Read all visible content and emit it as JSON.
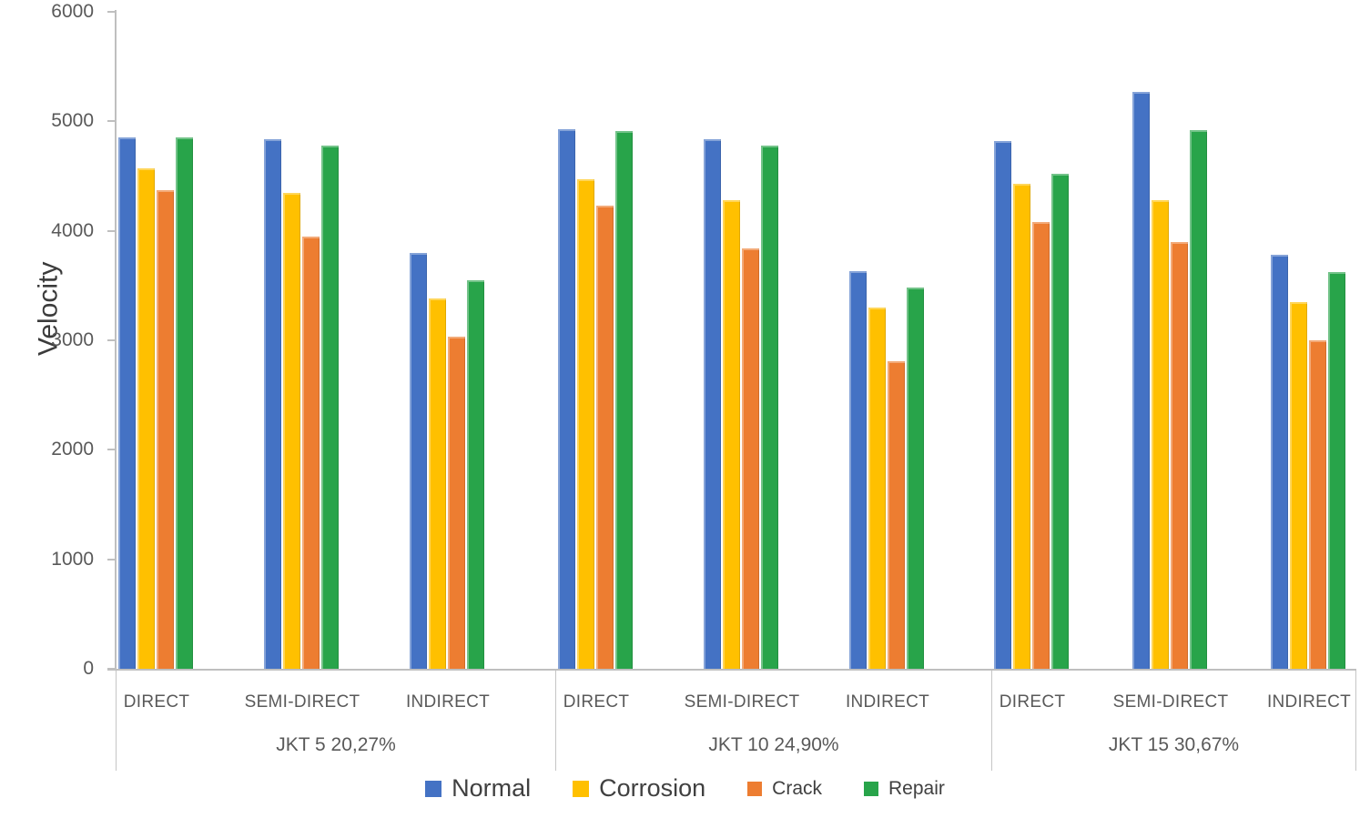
{
  "chart_data": {
    "type": "bar",
    "title": "",
    "ylabel": "Velocity",
    "xlabel": "",
    "ylim": [
      0,
      6000
    ],
    "yticks": [
      0,
      1000,
      2000,
      3000,
      4000,
      5000,
      6000
    ],
    "grid": false,
    "legend_position": "bottom",
    "series": [
      {
        "name": "Normal",
        "color": "#4472C4",
        "legend_size": "lg"
      },
      {
        "name": "Corrosion",
        "color": "#FFC000",
        "legend_size": "lg"
      },
      {
        "name": "Crack",
        "color": "#ED7D31",
        "legend_size": "sm"
      },
      {
        "name": "Repair",
        "color": "#28A44A",
        "legend_size": "sm"
      }
    ],
    "groups": [
      {
        "label": "JKT 5 20,27%",
        "categories": [
          {
            "label": "DIRECT",
            "values": {
              "Normal": 4850,
              "Corrosion": 4570,
              "Crack": 4370,
              "Repair": 4850
            }
          },
          {
            "label": "SEMI-DIRECT",
            "values": {
              "Normal": 4840,
              "Corrosion": 4350,
              "Crack": 3950,
              "Repair": 4780
            }
          },
          {
            "label": "INDIRECT",
            "values": {
              "Normal": 3800,
              "Corrosion": 3380,
              "Crack": 3030,
              "Repair": 3550
            }
          }
        ]
      },
      {
        "label": "JKT 10 24,90%",
        "categories": [
          {
            "label": "DIRECT",
            "values": {
              "Normal": 4930,
              "Corrosion": 4470,
              "Crack": 4230,
              "Repair": 4910
            }
          },
          {
            "label": "SEMI-DIRECT",
            "values": {
              "Normal": 4840,
              "Corrosion": 4280,
              "Crack": 3840,
              "Repair": 4780
            }
          },
          {
            "label": "INDIRECT",
            "values": {
              "Normal": 3630,
              "Corrosion": 3300,
              "Crack": 2810,
              "Repair": 3480
            }
          }
        ]
      },
      {
        "label": "JKT 15 30,67%",
        "categories": [
          {
            "label": "DIRECT",
            "values": {
              "Normal": 4820,
              "Corrosion": 4430,
              "Crack": 4080,
              "Repair": 4520
            }
          },
          {
            "label": "SEMI-DIRECT",
            "values": {
              "Normal": 5270,
              "Corrosion": 4280,
              "Crack": 3900,
              "Repair": 4920
            }
          },
          {
            "label": "INDIRECT",
            "values": {
              "Normal": 3780,
              "Corrosion": 3350,
              "Crack": 3000,
              "Repair": 3620
            }
          }
        ]
      }
    ]
  }
}
